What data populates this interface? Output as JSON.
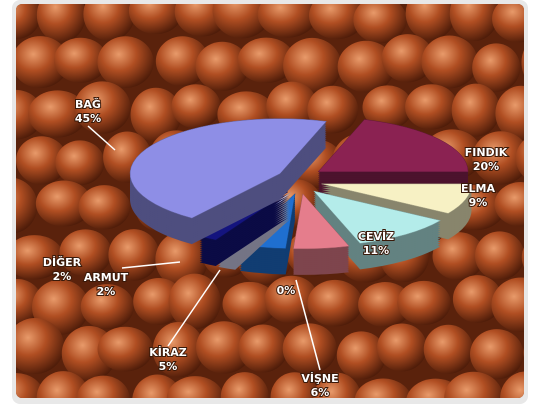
{
  "chart_data": {
    "type": "pie",
    "categories": [
      "FINDIK",
      "ELMA",
      "CEVİZ",
      "VİŞNE",
      "KİRAZ",
      "ARMUT",
      "DİĞER",
      "BAĞ"
    ],
    "values": [
      20,
      9,
      11,
      6,
      5,
      2,
      2,
      45
    ],
    "value_labels": [
      "20%",
      "9%",
      "11%",
      "6%",
      "5%",
      "2%",
      "2%",
      "45%"
    ],
    "colors": [
      "#8b2252",
      "#f7f1c4",
      "#b4ecea",
      "#e57d8c",
      "#1f6fd0",
      "#d2d2f2",
      "#14147e",
      "#8e8ee6"
    ],
    "annotations": [
      "0%"
    ]
  }
}
